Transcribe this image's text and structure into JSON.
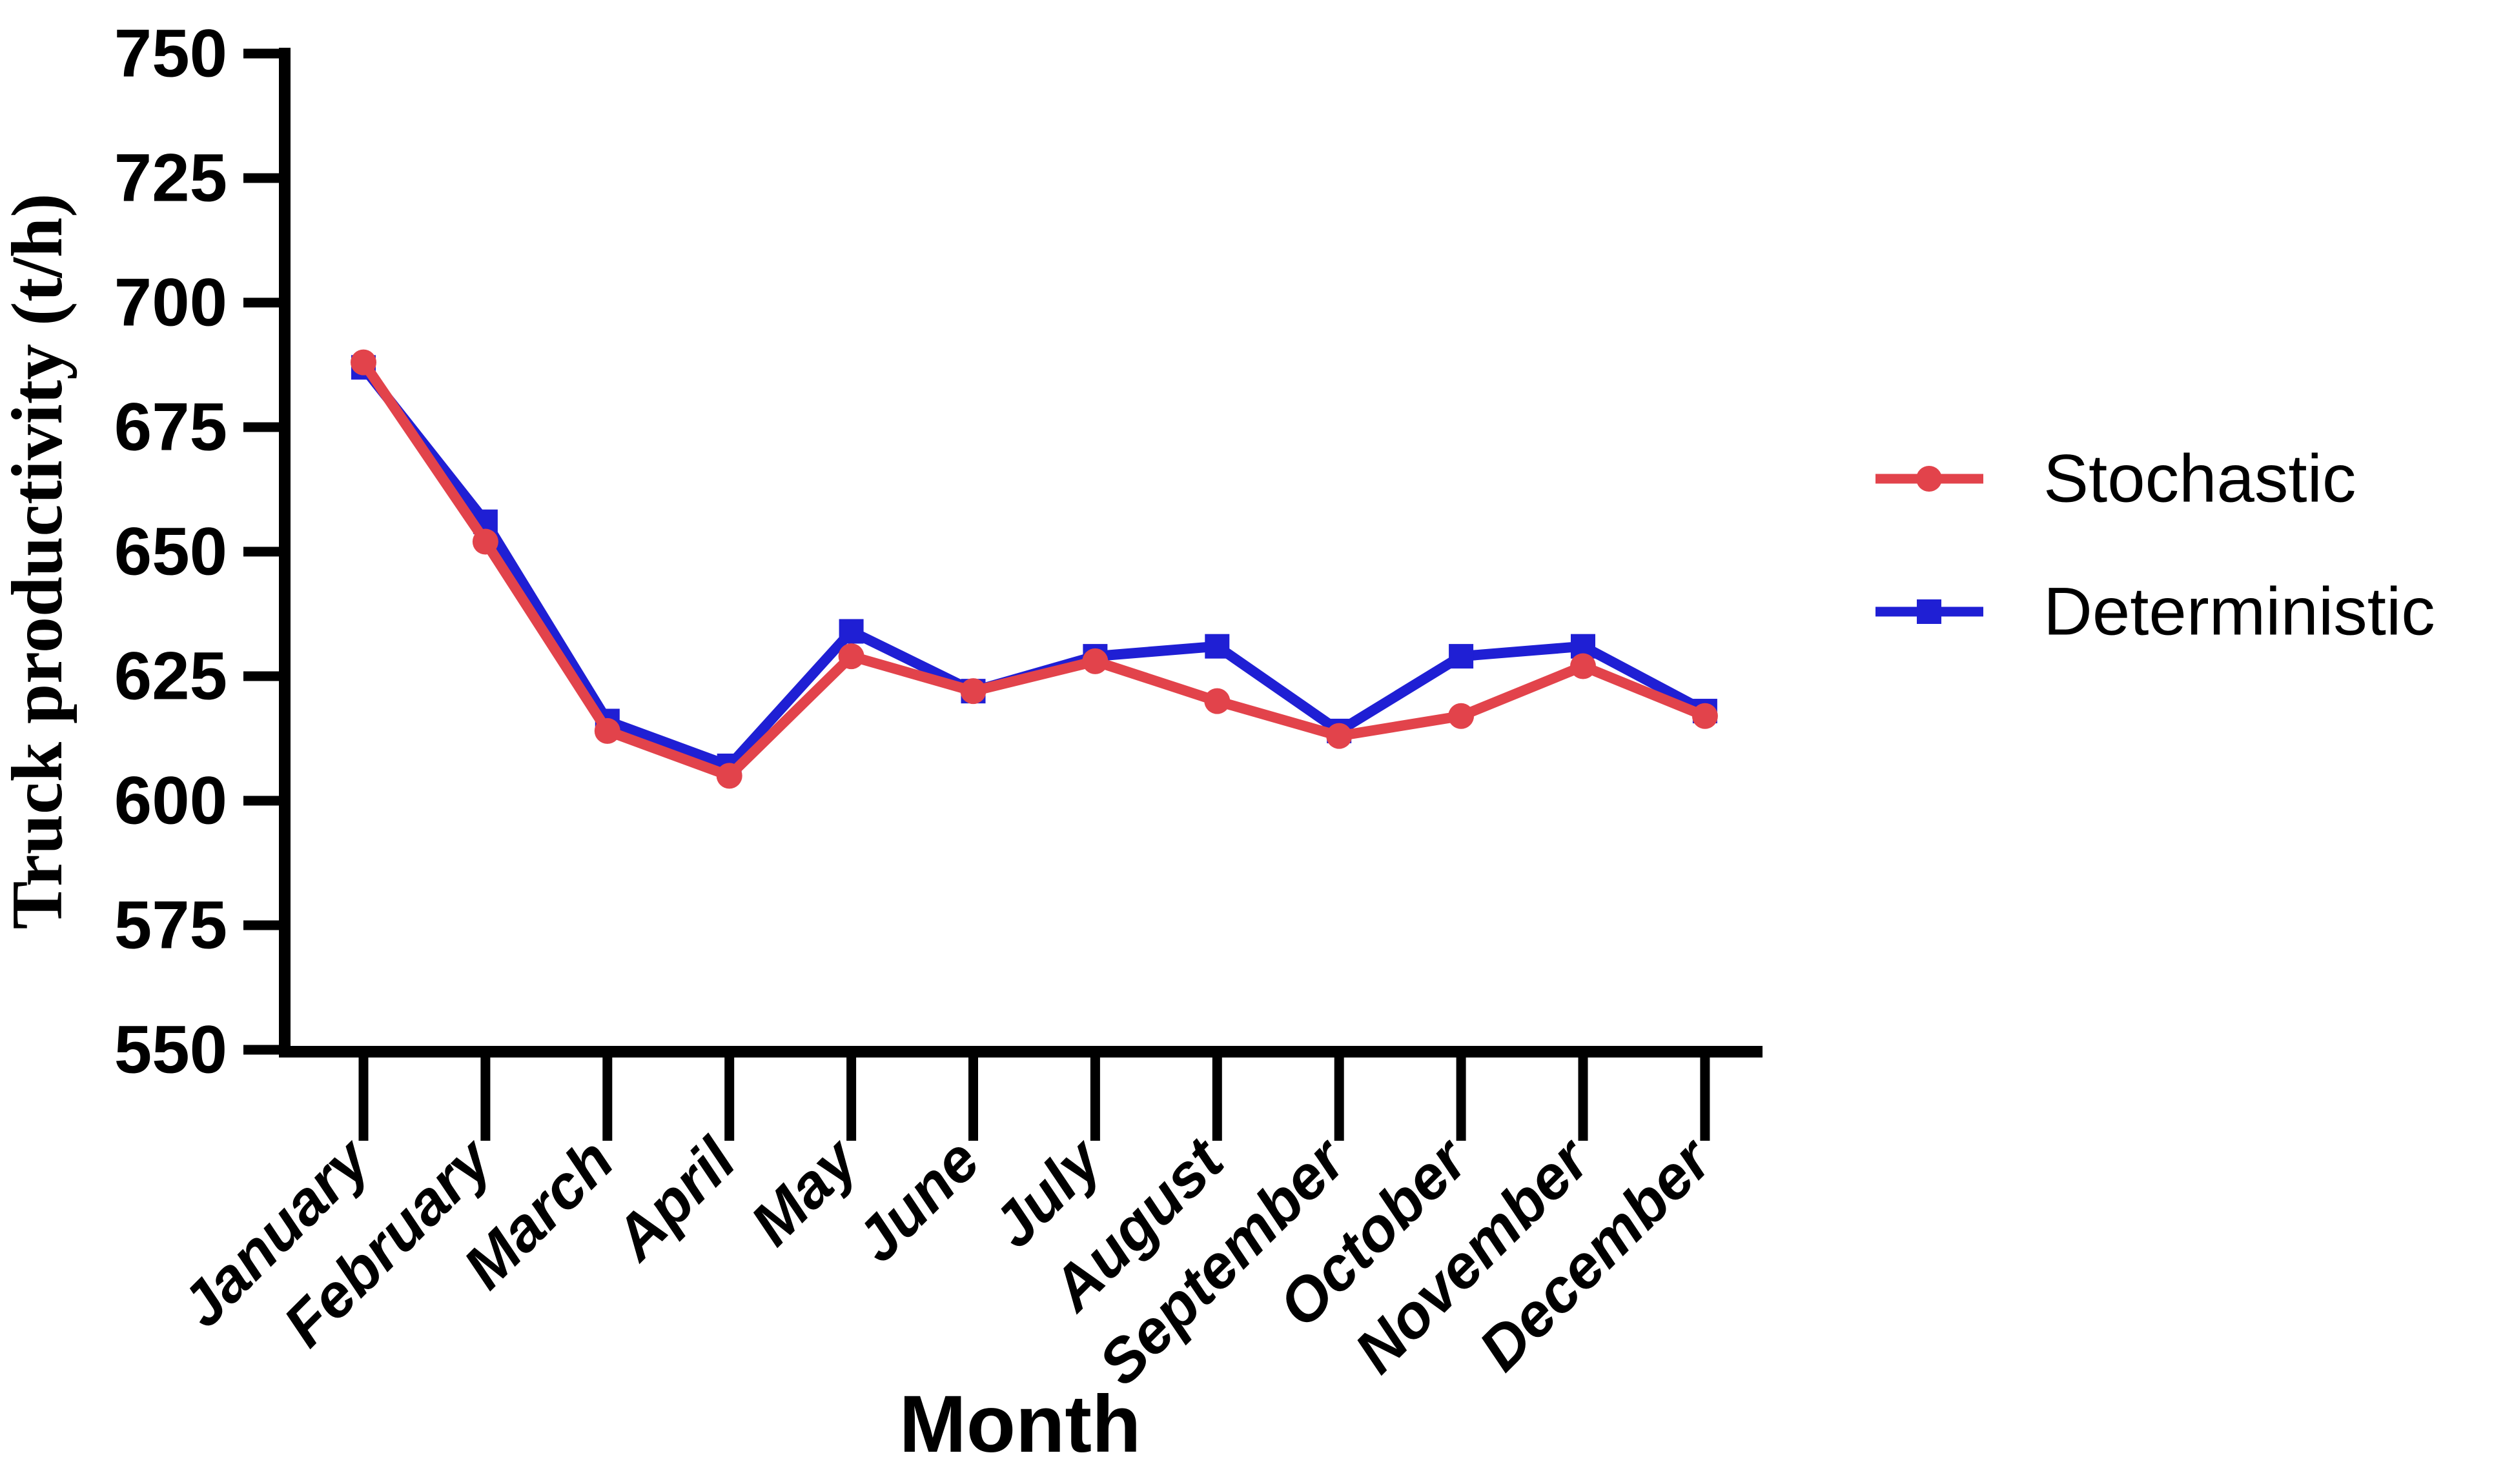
{
  "chart_data": {
    "type": "line",
    "title": "",
    "xlabel": "Month",
    "ylabel": "Truck productivity (t/h)",
    "ylim": [
      550,
      750
    ],
    "ytick_step": 25,
    "yticks": [
      550,
      575,
      600,
      625,
      650,
      675,
      700,
      725,
      750
    ],
    "categories": [
      "January",
      "February",
      "March",
      "April",
      "May",
      "June",
      "July",
      "August",
      "September",
      "October",
      "November",
      "December"
    ],
    "series": [
      {
        "name": "Stochastic",
        "color": "#e2434b",
        "marker": "circle",
        "values": [
          688,
          652,
          614,
          605,
          629,
          622,
          628,
          620,
          613,
          617,
          627,
          617
        ]
      },
      {
        "name": "Deterministic",
        "color": "#1f1fd4",
        "marker": "square",
        "values": [
          687,
          656,
          616,
          607,
          634,
          622,
          629,
          631,
          614,
          629,
          631,
          618
        ]
      }
    ],
    "axis_color": "#000000",
    "grid": false,
    "legend_position": "right"
  }
}
